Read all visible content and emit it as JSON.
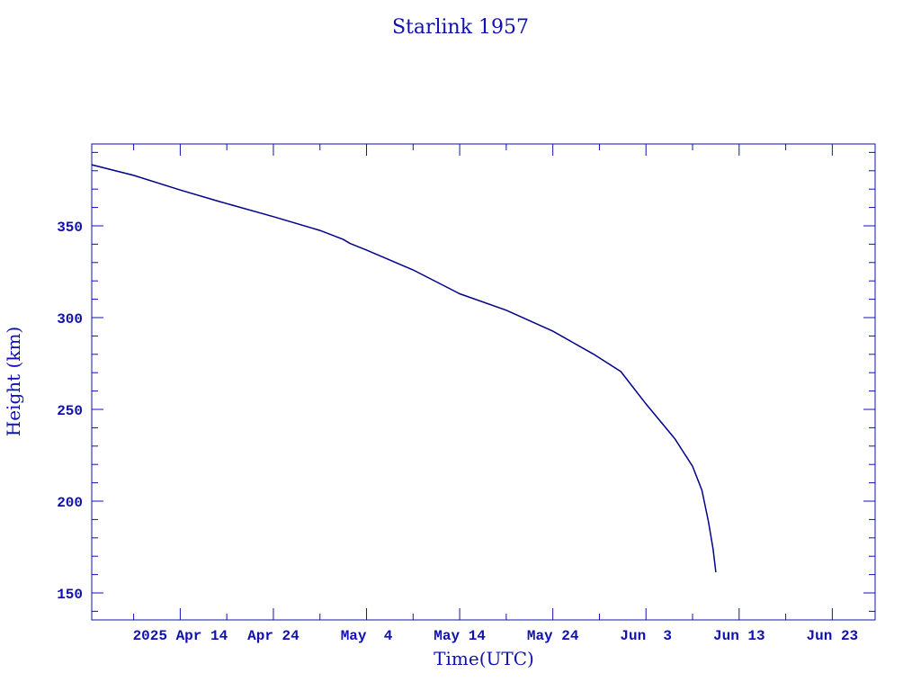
{
  "chart_data": {
    "type": "line",
    "title": "Starlink 1957",
    "xlabel": "Time(UTC)",
    "ylabel": "Height (km)",
    "x_units": "days since 2025-04-14 00:00 UTC",
    "xlim": [
      -9.5,
      74.6
    ],
    "ylim": [
      135.3,
      394.6
    ],
    "x_ticks": [
      {
        "value": 0,
        "label": "2025 Apr 14"
      },
      {
        "value": 10,
        "label": "Apr 24"
      },
      {
        "value": 20,
        "label": "May  4"
      },
      {
        "value": 30,
        "label": "May 14"
      },
      {
        "value": 40,
        "label": "May 24"
      },
      {
        "value": 50,
        "label": "Jun  3"
      },
      {
        "value": 60,
        "label": "Jun 13"
      },
      {
        "value": 70,
        "label": "Jun 23"
      }
    ],
    "y_ticks": [
      {
        "value": 150,
        "label": "150"
      },
      {
        "value": 200,
        "label": "200"
      },
      {
        "value": 250,
        "label": "250"
      },
      {
        "value": 300,
        "label": "300"
      },
      {
        "value": 350,
        "label": "350"
      }
    ],
    "grid": false,
    "color": "#00008b",
    "series": [
      {
        "name": "Height",
        "x": [
          -9.5,
          -5,
          0,
          4,
          10,
          15,
          17.5,
          18.2,
          20,
          25,
          30,
          35,
          40,
          44.4,
          47.3,
          50,
          53.1,
          55,
          56,
          56.7,
          57.2,
          57.5
        ],
        "y": [
          383.3,
          377.5,
          369.5,
          363.5,
          355,
          347.5,
          342.6,
          340.5,
          336.8,
          326,
          313,
          304,
          292.6,
          280,
          270.6,
          253,
          234,
          219,
          206,
          189,
          174,
          161.3
        ]
      }
    ]
  }
}
